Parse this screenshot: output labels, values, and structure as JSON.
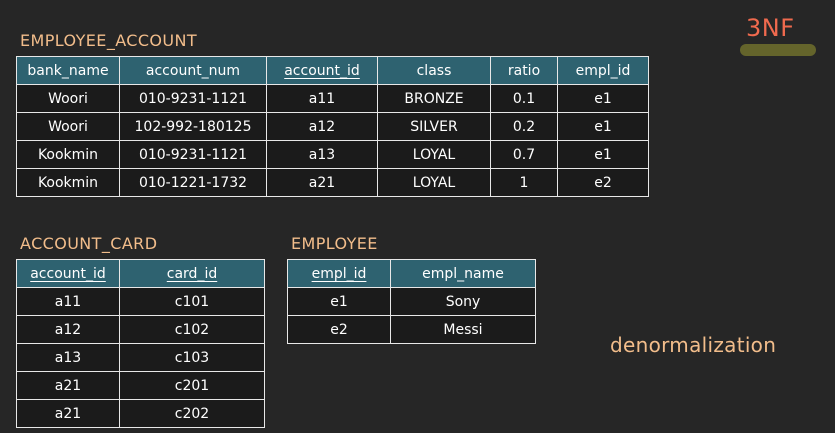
{
  "badge": {
    "text": "3NF"
  },
  "employee_account": {
    "title": "EMPLOYEE_ACCOUNT",
    "columns": [
      {
        "label": "bank_name",
        "pk": false
      },
      {
        "label": "account_num",
        "pk": false
      },
      {
        "label": "account_id",
        "pk": true
      },
      {
        "label": "class",
        "pk": false
      },
      {
        "label": "ratio",
        "pk": false
      },
      {
        "label": "empl_id",
        "pk": false
      }
    ],
    "rows": [
      [
        "Woori",
        "010-9231-1121",
        "a11",
        "BRONZE",
        "0.1",
        "e1"
      ],
      [
        "Woori",
        "102-992-180125",
        "a12",
        "SILVER",
        "0.2",
        "e1"
      ],
      [
        "Kookmin",
        "010-9231-1121",
        "a13",
        "LOYAL",
        "0.7",
        "e1"
      ],
      [
        "Kookmin",
        "010-1221-1732",
        "a21",
        "LOYAL",
        "1",
        "e2"
      ]
    ]
  },
  "account_card": {
    "title": "ACCOUNT_CARD",
    "columns": [
      {
        "label": "account_id",
        "pk": true
      },
      {
        "label": "card_id",
        "pk": true
      }
    ],
    "rows": [
      [
        "a11",
        "c101"
      ],
      [
        "a12",
        "c102"
      ],
      [
        "a13",
        "c103"
      ],
      [
        "a21",
        "c201"
      ],
      [
        "a21",
        "c202"
      ]
    ]
  },
  "employee": {
    "title": "EMPLOYEE",
    "columns": [
      {
        "label": "empl_id",
        "pk": true
      },
      {
        "label": "empl_name",
        "pk": false
      }
    ],
    "rows": [
      [
        "e1",
        "Sony"
      ],
      [
        "e2",
        "Messi"
      ]
    ]
  },
  "note": {
    "text": "denormalization"
  },
  "colors": {
    "background": "#262626",
    "header_fill": "#2e6270",
    "caption": "#f2bd8b",
    "badge_text": "#f06a4e",
    "badge_highlight": "#6b6b2c"
  }
}
